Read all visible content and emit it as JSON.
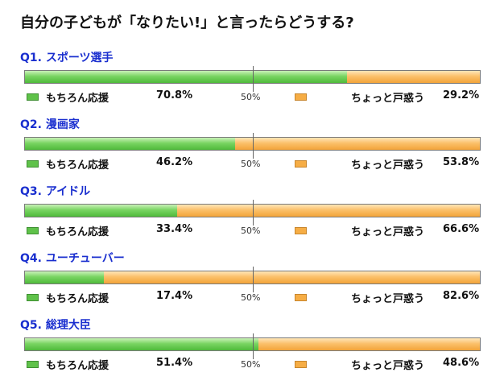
{
  "title": "自分の子どもが「なりたい!」と言ったらどうする?",
  "legend": {
    "yes_label": "もちろん応援",
    "no_label": "ちょっと戸惑う"
  },
  "midpoint_label": "50%",
  "colors": {
    "yes": "#5fc24a",
    "no": "#f6ad45",
    "question": "#1a2fcf"
  },
  "chart_data": {
    "type": "bar",
    "orientation": "horizontal-stacked",
    "categories": [
      "Q1. スポーツ選手",
      "Q2. 漫画家",
      "Q3. アイドル",
      "Q4. ユーチューバー",
      "Q5. 総理大臣"
    ],
    "series": [
      {
        "name": "もちろん応援",
        "values": [
          70.8,
          46.2,
          33.4,
          17.4,
          51.4
        ]
      },
      {
        "name": "ちょっと戸惑う",
        "values": [
          29.2,
          53.8,
          66.6,
          82.6,
          48.6
        ]
      }
    ],
    "value_labels": {
      "yes": [
        "70.8%",
        "46.2%",
        "33.4%",
        "17.4%",
        "51.4%"
      ],
      "no": [
        "29.2%",
        "53.8%",
        "66.6%",
        "82.6%",
        "48.6%"
      ]
    },
    "xlim": [
      0,
      100
    ]
  }
}
